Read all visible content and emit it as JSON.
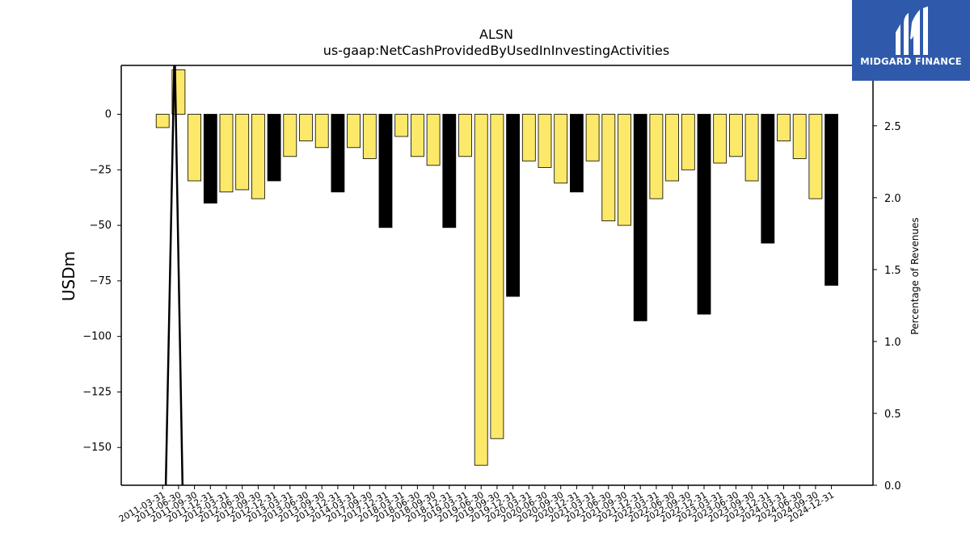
{
  "logo": {
    "text": "MIDGARD FINANCE",
    "icon": "midgard-logo-icon",
    "background": "#2f5aab"
  },
  "colors": {
    "bar_regular": "#fce96a",
    "bar_q4": "#000000",
    "bar_edge": "#000000",
    "line": "#000000"
  },
  "chart_data": {
    "type": "bar",
    "title": "ALSN",
    "subtitle": "us-gaap:NetCashProvidedByUsedInInvestingActivities",
    "ylabel": "USDm",
    "y2label": "Percentage of Revenues",
    "ylim": [
      -167,
      22
    ],
    "y2lim": [
      0.0,
      2.92
    ],
    "yticks": [
      0,
      -25,
      -50,
      -75,
      -100,
      -125,
      -150
    ],
    "ytick_labels": [
      "0",
      "−25",
      "−50",
      "−75",
      "−100",
      "−125",
      "−150"
    ],
    "y2ticks": [
      0.0,
      0.5,
      1.0,
      1.5,
      2.0,
      2.5
    ],
    "y2tick_labels": [
      "0.0",
      "0.5",
      "1.0",
      "1.5",
      "2.0",
      "2.5"
    ],
    "grid": false,
    "legend": "none",
    "categories": [
      "2011-03-31",
      "2011-06-30",
      "2011-09-30",
      "2011-12-31",
      "2012-03-31",
      "2012-06-30",
      "2012-09-30",
      "2012-12-31",
      "2013-03-31",
      "2013-06-30",
      "2013-09-30",
      "2013-12-31",
      "2014-03-31",
      "2017-09-30",
      "2017-12-31",
      "2018-03-31",
      "2018-06-30",
      "2018-09-30",
      "2018-12-31",
      "2019-03-31",
      "2019-06-30",
      "2019-09-30",
      "2019-12-31",
      "2020-03-31",
      "2020-06-30",
      "2020-09-30",
      "2020-12-31",
      "2021-03-31",
      "2021-06-30",
      "2021-09-30",
      "2021-12-31",
      "2022-03-31",
      "2022-06-30",
      "2022-09-30",
      "2022-12-31",
      "2023-03-31",
      "2023-06-30",
      "2023-09-30",
      "2023-12-31",
      "2024-03-31",
      "2024-06-30",
      "2024-09-30",
      "2024-12-31"
    ],
    "bar_values": [
      -6,
      20,
      -30,
      -40,
      -35,
      -34,
      -38,
      -30,
      -19,
      -12,
      -15,
      -35,
      -15,
      -20,
      -51,
      -10,
      -19,
      -23,
      -51,
      -19,
      -158,
      -146,
      -82,
      -21,
      -24,
      -31,
      -35,
      -21,
      -48,
      -50,
      -93,
      -38,
      -30,
      -25,
      -90,
      -22,
      -19,
      -30,
      -58,
      -12,
      -20,
      -38,
      -77
    ],
    "bar_is_q4": [
      false,
      false,
      false,
      true,
      false,
      false,
      false,
      true,
      false,
      false,
      false,
      true,
      false,
      false,
      true,
      false,
      false,
      false,
      true,
      false,
      false,
      false,
      true,
      false,
      false,
      false,
      true,
      false,
      false,
      false,
      true,
      false,
      false,
      false,
      true,
      false,
      false,
      false,
      true,
      false,
      false,
      false,
      true
    ],
    "bar_start_slot": 1,
    "line_series": {
      "axis": "y2",
      "x_slots": [
        1.2,
        1.75,
        2.25
      ],
      "values": [
        0.0,
        3.05,
        0.0
      ]
    }
  }
}
